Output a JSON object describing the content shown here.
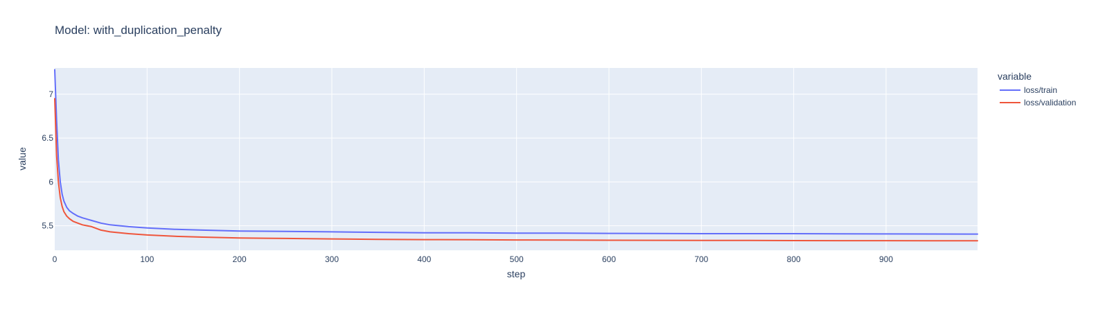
{
  "chart_data": {
    "type": "line",
    "title": "Model: with_duplication_penalty",
    "xlabel": "step",
    "ylabel": "value",
    "xlim": [
      0,
      999
    ],
    "ylim": [
      5.22,
      7.3
    ],
    "x_ticks": [
      0,
      100,
      200,
      300,
      400,
      500,
      600,
      700,
      800,
      900
    ],
    "y_ticks": [
      5.5,
      6,
      6.5,
      7
    ],
    "x_tick_labels": [
      "0",
      "100",
      "200",
      "300",
      "400",
      "500",
      "600",
      "700",
      "800",
      "900"
    ],
    "y_tick_labels": [
      "5.5",
      "6",
      "6.5",
      "7"
    ],
    "grid": true,
    "legend": {
      "title": "variable",
      "position": "right"
    },
    "series": [
      {
        "name": "loss/train",
        "color": "#636efa",
        "x": [
          0,
          2,
          4,
          6,
          8,
          10,
          13,
          16,
          20,
          25,
          30,
          40,
          50,
          60,
          80,
          100,
          130,
          160,
          200,
          250,
          300,
          350,
          400,
          450,
          500,
          550,
          600,
          650,
          700,
          750,
          800,
          850,
          900,
          950,
          999
        ],
        "y": [
          7.28,
          6.7,
          6.25,
          6.0,
          5.86,
          5.78,
          5.71,
          5.67,
          5.64,
          5.61,
          5.59,
          5.56,
          5.53,
          5.51,
          5.49,
          5.475,
          5.46,
          5.45,
          5.44,
          5.435,
          5.43,
          5.425,
          5.42,
          5.42,
          5.415,
          5.415,
          5.413,
          5.412,
          5.41,
          5.41,
          5.41,
          5.408,
          5.407,
          5.406,
          5.405
        ]
      },
      {
        "name": "loss/validation",
        "color": "#ef553b",
        "x": [
          0,
          2,
          4,
          6,
          8,
          10,
          13,
          16,
          20,
          25,
          30,
          40,
          50,
          60,
          80,
          100,
          130,
          160,
          200,
          250,
          300,
          350,
          400,
          450,
          500,
          550,
          600,
          650,
          700,
          750,
          800,
          850,
          900,
          950,
          999
        ],
        "y": [
          6.95,
          6.3,
          6.0,
          5.82,
          5.72,
          5.66,
          5.61,
          5.58,
          5.55,
          5.53,
          5.51,
          5.49,
          5.45,
          5.43,
          5.41,
          5.395,
          5.38,
          5.37,
          5.36,
          5.355,
          5.35,
          5.345,
          5.342,
          5.34,
          5.338,
          5.336,
          5.335,
          5.334,
          5.333,
          5.332,
          5.331,
          5.33,
          5.33,
          5.329,
          5.328
        ]
      }
    ]
  }
}
